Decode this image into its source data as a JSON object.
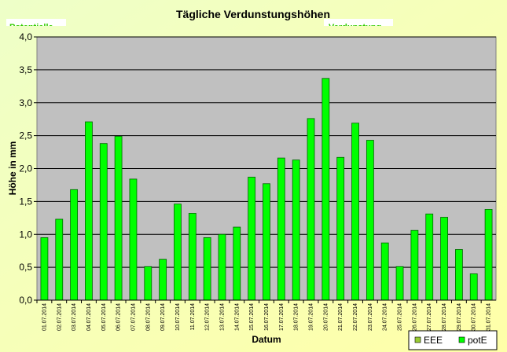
{
  "chart_data": {
    "type": "bar",
    "title": "Tägliche Verdunstungshöhen",
    "annotations": [
      "Potentielle",
      "Verdunstung"
    ],
    "y_label": "Höhe in mm",
    "x_label": "Datum",
    "categories": [
      "01.07.2014",
      "02.07.2014",
      "03.07.2014",
      "04.07.2014",
      "05.07.2014",
      "06.07.2014",
      "07.07.2014",
      "08.07.2014",
      "09.07.2014",
      "10.07.2014",
      "11.07.2014",
      "12.07.2014",
      "13.07.2014",
      "14.07.2014",
      "15.07.2014",
      "16.07.2014",
      "17.07.2014",
      "18.07.2014",
      "19.07.2014",
      "20.07.2014",
      "21.07.2014",
      "22.07.2014",
      "23.07.2014",
      "24.07.2014",
      "25.07.2014",
      "26.07.2014",
      "27.07.2014",
      "28.07.2014",
      "29.07.2014",
      "30.07.2014",
      "31.07.2014"
    ],
    "series": [
      {
        "name": "EEE",
        "color": "#99cc33",
        "values": [
          null,
          null,
          null,
          null,
          null,
          null,
          null,
          null,
          null,
          null,
          null,
          null,
          null,
          null,
          null,
          null,
          null,
          null,
          null,
          null,
          null,
          null,
          null,
          null,
          null,
          null,
          null,
          null,
          null,
          null,
          null
        ]
      },
      {
        "name": "potE",
        "color": "#00ff00",
        "values": [
          0.95,
          1.23,
          1.68,
          2.71,
          2.38,
          2.49,
          1.84,
          0.51,
          0.62,
          1.46,
          1.32,
          0.95,
          1.0,
          1.11,
          1.87,
          1.77,
          2.16,
          2.13,
          2.76,
          3.37,
          2.17,
          2.69,
          2.43,
          0.87,
          0.51,
          1.06,
          1.31,
          1.26,
          0.77,
          0.4,
          1.38
        ]
      }
    ],
    "ylim": [
      0,
      4
    ],
    "yticks": [
      {
        "value": 0,
        "label": "0,0"
      },
      {
        "value": 0.5,
        "label": "0,5"
      },
      {
        "value": 1,
        "label": "1,0"
      },
      {
        "value": 1.5,
        "label": "1,5"
      },
      {
        "value": 2,
        "label": "2,0"
      },
      {
        "value": 2.5,
        "label": "2,5"
      },
      {
        "value": 3,
        "label": "3,0"
      },
      {
        "value": 3.5,
        "label": "3,5"
      },
      {
        "value": 4,
        "label": "4,0"
      }
    ],
    "grid": true,
    "legend": "bottom-right"
  }
}
